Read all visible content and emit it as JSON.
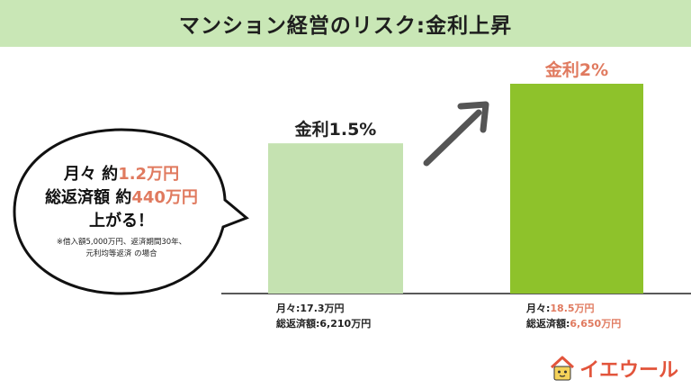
{
  "title": "マンション経営のリスク:金利上昇",
  "chart_data": {
    "type": "bar",
    "categories": [
      "金利1.5%",
      "金利2%"
    ],
    "values": [
      6210,
      6650
    ],
    "ylabel": "",
    "xlabel": "",
    "bar_colors": [
      "#c5e2b1",
      "#8ec22b"
    ],
    "label_colors": [
      "#222222",
      "#e07a5f"
    ],
    "captions": [
      {
        "monthly_label": "月々:",
        "monthly_value": "17.3万円",
        "total_label": "総返済額:",
        "total_value": "6,210万円",
        "highlight": false
      },
      {
        "monthly_label": "月々:",
        "monthly_value": "18.5万円",
        "total_label": "総返済額:",
        "total_value": "6,650万円",
        "highlight": true
      }
    ]
  },
  "bubble": {
    "line1_prefix": "月々 約",
    "line1_value": "1.2万円",
    "line2_prefix": "総返済額 約",
    "line2_value": "440万円",
    "line3": "上がる！",
    "note1": "※借入額5,000万円、返済期間30年、",
    "note2": "元利均等返済 の場合"
  },
  "logo": {
    "text": "イエウール"
  },
  "colors": {
    "title_bg": "#c9e7b6",
    "accent": "#e07a5f",
    "arrow": "#555555"
  }
}
